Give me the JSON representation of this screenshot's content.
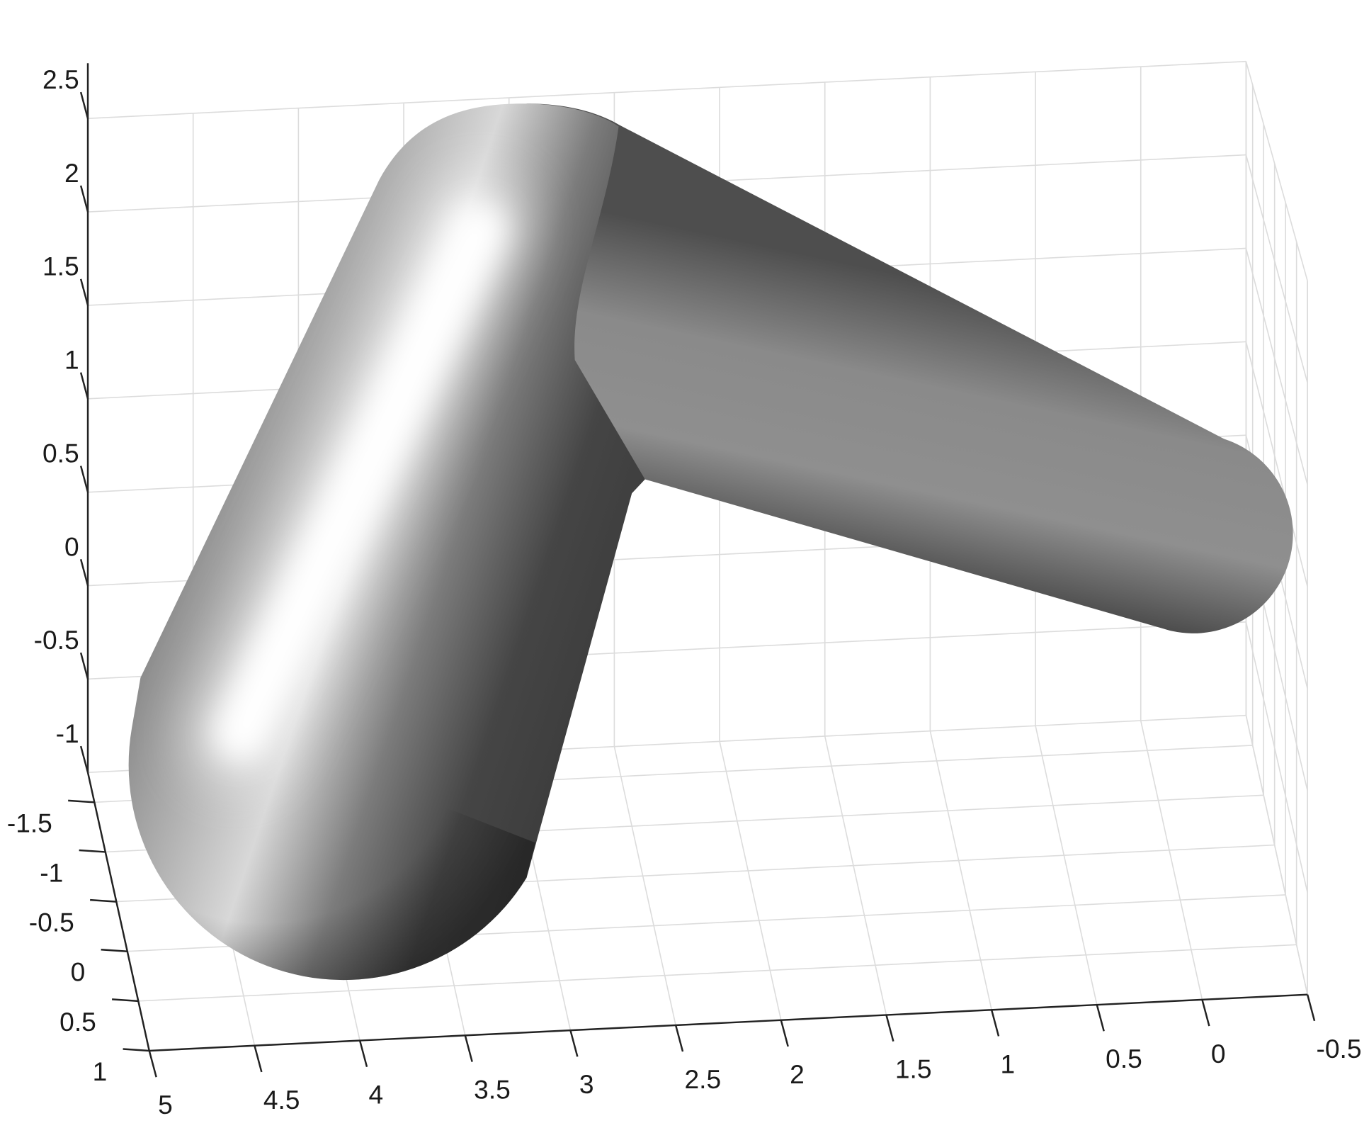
{
  "chart_data": {
    "type": "surface",
    "xlim": [
      5,
      -0.5
    ],
    "ylim": [
      -1.8,
      1
    ],
    "zlim": [
      -1,
      2.5
    ],
    "xticks": [
      5,
      4.5,
      4,
      3.5,
      3,
      2.5,
      2,
      1.5,
      1,
      0.5,
      0,
      -0.5
    ],
    "yticks": [
      -1.5,
      -1,
      -0.5,
      0,
      0.5,
      1
    ],
    "zticks": [
      -1,
      -0.5,
      0,
      0.5,
      1,
      1.5,
      2,
      2.5
    ],
    "grid": true
  }
}
